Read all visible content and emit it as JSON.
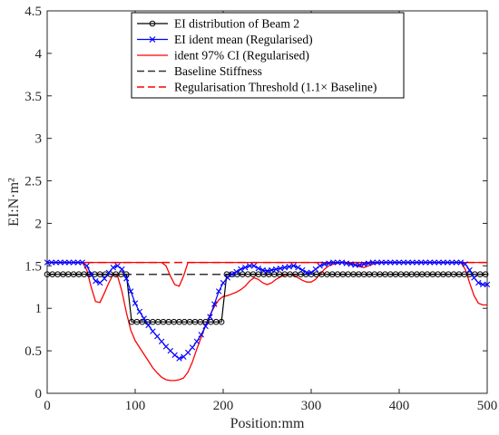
{
  "chart_data": {
    "type": "line",
    "title": "",
    "xlabel": "Position:mm",
    "ylabel": "EI:N·m²",
    "xlim": [
      0,
      500
    ],
    "ylim": [
      0,
      4.5
    ],
    "xticks": [
      "0",
      "100",
      "200",
      "300",
      "400",
      "500"
    ],
    "yticks": [
      "0",
      "0.5",
      "1",
      "1.5",
      "2",
      "2.5",
      "3",
      "3.5",
      "4",
      "4.5"
    ],
    "grid": false,
    "legend_position": "top",
    "colors": {
      "beam": "#000000",
      "ident_mean": "#0000ff",
      "ci": "#ff0000",
      "baseline": "#333333",
      "threshold": "#ff0000"
    },
    "series": [
      {
        "name": "EI distribution of Beam 2",
        "style": "line-circle",
        "x": [
          0,
          6,
          12,
          18,
          24,
          30,
          36,
          42,
          48,
          54,
          60,
          66,
          72,
          78,
          84,
          90,
          96,
          102,
          108,
          114,
          120,
          126,
          132,
          138,
          144,
          150,
          156,
          162,
          168,
          174,
          180,
          186,
          192,
          198,
          204,
          210,
          216,
          222,
          228,
          234,
          240,
          246,
          252,
          258,
          264,
          270,
          276,
          282,
          288,
          294,
          300,
          306,
          312,
          318,
          324,
          330,
          336,
          342,
          348,
          354,
          360,
          366,
          372,
          378,
          384,
          390,
          396,
          402,
          408,
          414,
          420,
          426,
          432,
          438,
          444,
          450,
          456,
          462,
          468,
          474,
          480,
          486,
          492,
          498
        ],
        "y": [
          1.4,
          1.4,
          1.4,
          1.4,
          1.4,
          1.4,
          1.4,
          1.4,
          1.4,
          1.4,
          1.4,
          1.4,
          1.4,
          1.4,
          1.4,
          1.4,
          0.84,
          0.84,
          0.84,
          0.84,
          0.84,
          0.84,
          0.84,
          0.84,
          0.84,
          0.84,
          0.84,
          0.84,
          0.84,
          0.84,
          0.84,
          0.84,
          0.84,
          0.84,
          1.4,
          1.4,
          1.4,
          1.4,
          1.4,
          1.4,
          1.4,
          1.4,
          1.4,
          1.4,
          1.4,
          1.4,
          1.4,
          1.4,
          1.4,
          1.4,
          1.4,
          1.4,
          1.4,
          1.4,
          1.4,
          1.4,
          1.4,
          1.4,
          1.4,
          1.4,
          1.4,
          1.4,
          1.4,
          1.4,
          1.4,
          1.4,
          1.4,
          1.4,
          1.4,
          1.4,
          1.4,
          1.4,
          1.4,
          1.4,
          1.4,
          1.4,
          1.4,
          1.4,
          1.4,
          1.4,
          1.4,
          1.4,
          1.4,
          1.4
        ]
      },
      {
        "name": "EI ident mean (Regularised)",
        "style": "line-x",
        "x": [
          0,
          5,
          10,
          15,
          20,
          25,
          30,
          35,
          40,
          45,
          50,
          55,
          60,
          65,
          70,
          75,
          80,
          85,
          90,
          95,
          100,
          105,
          110,
          115,
          120,
          125,
          130,
          135,
          140,
          145,
          150,
          155,
          160,
          165,
          170,
          175,
          180,
          185,
          190,
          195,
          200,
          205,
          210,
          215,
          220,
          225,
          230,
          235,
          240,
          245,
          250,
          255,
          260,
          265,
          270,
          275,
          280,
          285,
          290,
          295,
          300,
          305,
          310,
          315,
          320,
          325,
          330,
          335,
          340,
          345,
          350,
          355,
          360,
          365,
          370,
          375,
          380,
          385,
          390,
          395,
          400,
          405,
          410,
          415,
          420,
          425,
          430,
          435,
          440,
          445,
          450,
          455,
          460,
          465,
          470,
          475,
          480,
          485,
          490,
          495,
          500
        ],
        "y": [
          1.54,
          1.54,
          1.54,
          1.54,
          1.54,
          1.54,
          1.54,
          1.54,
          1.54,
          1.5,
          1.4,
          1.32,
          1.3,
          1.35,
          1.42,
          1.48,
          1.5,
          1.46,
          1.35,
          1.2,
          1.06,
          0.96,
          0.88,
          0.8,
          0.73,
          0.67,
          0.61,
          0.55,
          0.5,
          0.45,
          0.41,
          0.43,
          0.48,
          0.54,
          0.61,
          0.69,
          0.79,
          0.9,
          1.05,
          1.2,
          1.3,
          1.36,
          1.4,
          1.43,
          1.46,
          1.48,
          1.5,
          1.5,
          1.47,
          1.45,
          1.44,
          1.45,
          1.46,
          1.47,
          1.48,
          1.49,
          1.5,
          1.48,
          1.45,
          1.42,
          1.42,
          1.46,
          1.5,
          1.52,
          1.53,
          1.54,
          1.54,
          1.54,
          1.53,
          1.52,
          1.51,
          1.51,
          1.52,
          1.53,
          1.54,
          1.54,
          1.54,
          1.54,
          1.54,
          1.54,
          1.54,
          1.54,
          1.54,
          1.54,
          1.54,
          1.54,
          1.54,
          1.54,
          1.54,
          1.54,
          1.54,
          1.54,
          1.54,
          1.54,
          1.54,
          1.52,
          1.45,
          1.36,
          1.3,
          1.28,
          1.28
        ]
      },
      {
        "name": "ident 97% CI (Regularised)",
        "style": "line",
        "segments": [
          {
            "x": [
              0,
              40,
              45,
              50,
              55,
              60,
              65,
              70,
              75,
              80,
              85,
              90,
              95,
              100,
              105,
              110,
              115,
              120,
              125,
              130,
              135,
              140,
              145,
              150,
              155,
              160,
              165,
              170,
              175,
              180,
              185,
              190,
              195,
              200,
              205,
              210,
              215,
              220,
              225,
              230,
              235,
              240,
              245,
              250,
              255,
              260,
              265,
              270,
              275,
              280,
              285,
              290,
              295,
              300,
              305,
              310,
              315,
              320,
              325,
              330,
              335,
              340,
              345,
              350,
              355,
              360,
              365,
              370,
              375,
              380,
              470,
              475,
              480,
              485,
              490,
              495,
              500
            ],
            "y": [
              1.54,
              1.54,
              1.45,
              1.25,
              1.08,
              1.07,
              1.18,
              1.3,
              1.4,
              1.38,
              1.2,
              0.95,
              0.74,
              0.62,
              0.54,
              0.46,
              0.38,
              0.3,
              0.24,
              0.19,
              0.16,
              0.15,
              0.15,
              0.16,
              0.18,
              0.25,
              0.37,
              0.52,
              0.66,
              0.8,
              0.92,
              1.02,
              1.1,
              1.14,
              1.15,
              1.17,
              1.19,
              1.22,
              1.26,
              1.32,
              1.36,
              1.34,
              1.3,
              1.28,
              1.3,
              1.34,
              1.37,
              1.39,
              1.4,
              1.39,
              1.36,
              1.33,
              1.31,
              1.31,
              1.34,
              1.4,
              1.46,
              1.5,
              1.52,
              1.53,
              1.54,
              1.54,
              1.53,
              1.51,
              1.49,
              1.48,
              1.5,
              1.52,
              1.53,
              1.54,
              1.54,
              1.46,
              1.3,
              1.15,
              1.06,
              1.04,
              1.04
            ]
          },
          {
            "x": [
              0,
              130,
              135,
              140,
              145,
              150,
              155,
              160,
              500
            ],
            "y": [
              1.54,
              1.54,
              1.5,
              1.38,
              1.28,
              1.26,
              1.38,
              1.54,
              1.54
            ]
          }
        ]
      },
      {
        "name": "Baseline Stiffness",
        "style": "dashed",
        "x": [
          0,
          500
        ],
        "y": [
          1.4,
          1.4
        ]
      },
      {
        "name": "Regularisation Threshold (1.1× Baseline)",
        "style": "dashed",
        "x": [
          0,
          500
        ],
        "y": [
          1.54,
          1.54
        ]
      }
    ]
  }
}
